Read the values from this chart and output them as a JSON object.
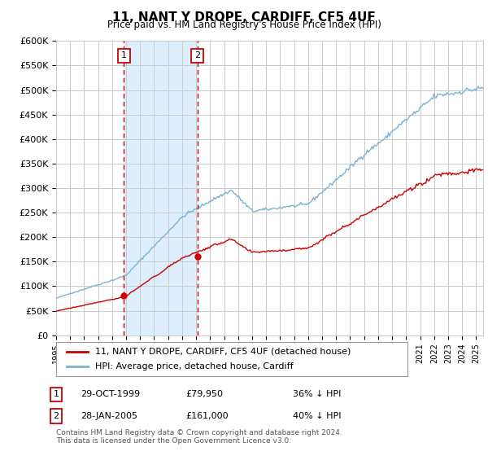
{
  "title": "11, NANT Y DROPE, CARDIFF, CF5 4UF",
  "subtitle": "Price paid vs. HM Land Registry's House Price Index (HPI)",
  "ylim": [
    0,
    600000
  ],
  "yticks": [
    0,
    50000,
    100000,
    150000,
    200000,
    250000,
    300000,
    350000,
    400000,
    450000,
    500000,
    550000,
    600000
  ],
  "ytick_labels": [
    "£0",
    "£50K",
    "£100K",
    "£150K",
    "£200K",
    "£250K",
    "£300K",
    "£350K",
    "£400K",
    "£450K",
    "£500K",
    "£550K",
    "£600K"
  ],
  "xlim_start": 1995.0,
  "xlim_end": 2025.5,
  "sale1_year": 1999.83,
  "sale1_price": 79950,
  "sale1_label": "1",
  "sale1_date": "29-OCT-1999",
  "sale1_amount": "£79,950",
  "sale1_hpi": "36% ↓ HPI",
  "sale2_year": 2005.08,
  "sale2_price": 161000,
  "sale2_label": "2",
  "sale2_date": "28-JAN-2005",
  "sale2_amount": "£161,000",
  "sale2_hpi": "40% ↓ HPI",
  "hpi_color": "#7ab3d4",
  "price_color": "#cc0000",
  "shade_color": "#ddeeff",
  "legend_label_price": "11, NANT Y DROPE, CARDIFF, CF5 4UF (detached house)",
  "legend_label_hpi": "HPI: Average price, detached house, Cardiff",
  "footer": "Contains HM Land Registry data © Crown copyright and database right 2024.\nThis data is licensed under the Open Government Licence v3.0.",
  "background_color": "#ffffff",
  "grid_color": "#cccccc"
}
